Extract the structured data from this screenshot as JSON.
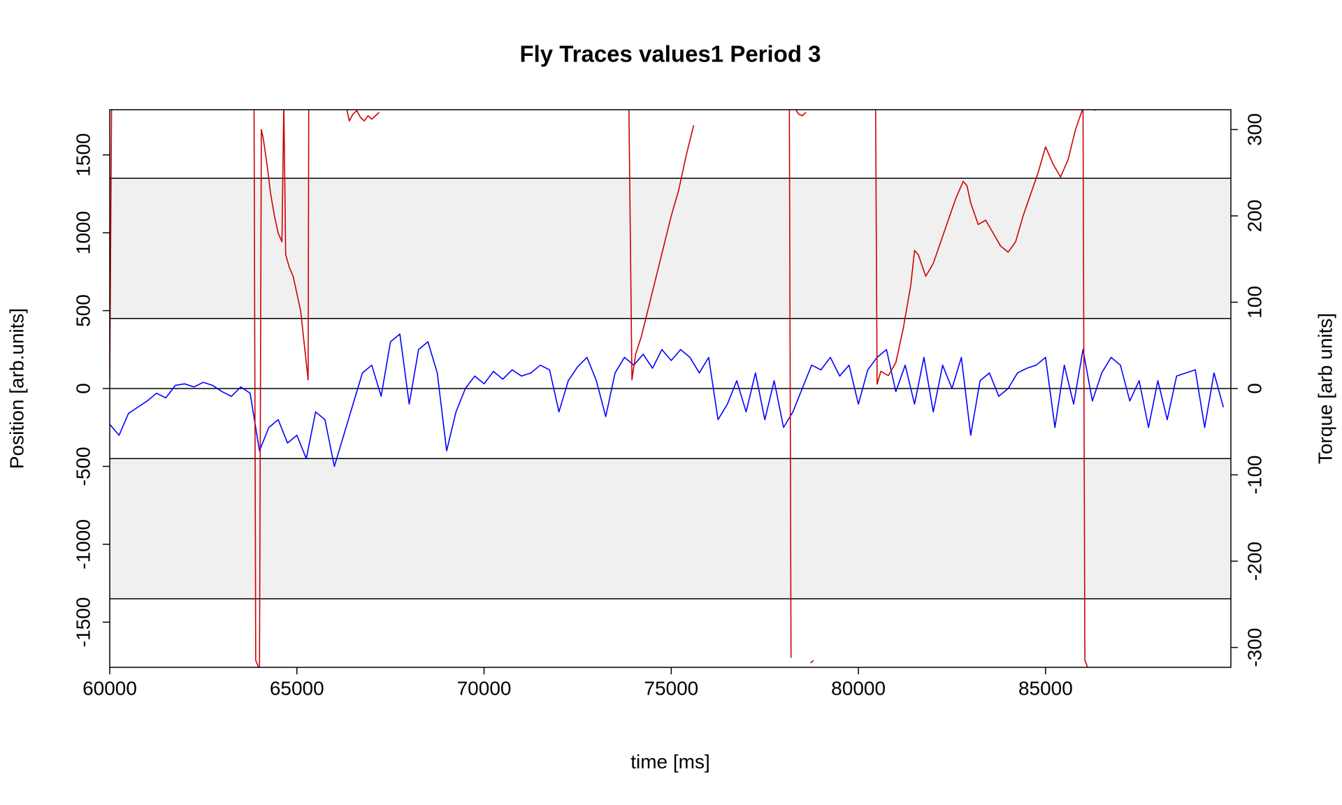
{
  "chart_data": {
    "type": "line",
    "title": "Fly Traces values1 Period 3",
    "x_label": "time [ms]",
    "y_label": "Position [arb.units]",
    "y2_label": "Torque [arb units]",
    "xlim": [
      60000,
      89950
    ],
    "xticks": [
      60000,
      65000,
      70000,
      75000,
      80000,
      85000
    ],
    "ylim": [
      -1790,
      1790
    ],
    "yticks": [
      -1500,
      -1000,
      -500,
      0,
      500,
      1000,
      1500
    ],
    "y2lim": [
      -323,
      323
    ],
    "y2ticks": [
      -300,
      -200,
      -100,
      0,
      100,
      200,
      300
    ],
    "bands": [
      [
        450,
        1350
      ],
      [
        -1350,
        -450
      ]
    ],
    "band_color": "#f0f0f0",
    "hlines": [
      0,
      450,
      -450,
      1350,
      -1350
    ],
    "series": [
      {
        "color": "#0000ff",
        "x": [
          60000,
          60250,
          60500,
          60750,
          61000,
          61250,
          61500,
          61750,
          62000,
          62250,
          62500,
          62750,
          63000,
          63250,
          63500,
          63750,
          64000,
          64250,
          64500,
          64750,
          65000,
          65250,
          65500,
          65750,
          66000,
          66250,
          66500,
          66750,
          67000,
          67250,
          67500,
          67750,
          68000,
          68250,
          68500,
          68750,
          69000,
          69250,
          69500,
          69750,
          70000,
          70250,
          70500,
          70750,
          71000,
          71250,
          71500,
          71750,
          72000,
          72250,
          72500,
          72750,
          73000,
          73250,
          73500,
          73750,
          74000,
          74250,
          74500,
          74750,
          75000,
          75250,
          75500,
          75750,
          76000,
          76250,
          76500,
          76750,
          77000,
          77250,
          77500,
          77750,
          78000,
          78250,
          78500,
          78750,
          79000,
          79250,
          79500,
          79750,
          80000,
          80250,
          80500,
          80750,
          81000,
          81250,
          81500,
          81750,
          82000,
          82250,
          82500,
          82750,
          83000,
          83250,
          83500,
          83750,
          84000,
          84250,
          84500,
          84750,
          85000,
          85250,
          85500,
          85750,
          86000,
          86250,
          86500,
          86750,
          87000,
          87250,
          87500,
          87750,
          88000,
          88250,
          88500,
          88750,
          89000,
          89250,
          89500,
          89750
        ],
        "values": [
          -230,
          -300,
          -160,
          -120,
          -80,
          -30,
          -60,
          20,
          30,
          10,
          40,
          20,
          -20,
          -50,
          10,
          -30,
          -400,
          -250,
          -200,
          -350,
          -300,
          -450,
          -150,
          -200,
          -500,
          -300,
          -100,
          100,
          150,
          -50,
          300,
          350,
          -100,
          250,
          300,
          100,
          -400,
          -150,
          0,
          80,
          30,
          110,
          60,
          120,
          80,
          100,
          150,
          120,
          -150,
          50,
          140,
          200,
          50,
          -180,
          100,
          200,
          150,
          220,
          130,
          250,
          180,
          250,
          200,
          100,
          200,
          -200,
          -100,
          50,
          -150,
          100,
          -200,
          50,
          -250,
          -150,
          0,
          150,
          120,
          200,
          80,
          150,
          -100,
          120,
          200,
          250,
          -20,
          150,
          -100,
          200,
          -150,
          150,
          0,
          200,
          -300,
          50,
          100,
          -50,
          0,
          100,
          130,
          150,
          200,
          -250,
          150,
          -100,
          250,
          -80,
          100,
          200,
          150,
          -80,
          50,
          -250,
          50,
          -200,
          80,
          100,
          120,
          -250,
          100,
          -120
        ]
      },
      {
        "color": "#cc0000",
        "axis": "y2",
        "x": [
          60000,
          60060,
          60100,
          63850,
          63900,
          63950,
          64000,
          64050,
          64100,
          64200,
          64300,
          64400,
          64500,
          64600,
          64650,
          64700,
          64800,
          64900,
          65000,
          65100,
          65200,
          65300,
          65320,
          65400,
          66200,
          66300,
          66400,
          66500,
          66600,
          66700,
          66800,
          66900,
          67000,
          67100,
          67200,
          67300,
          73850,
          73950,
          74050,
          74200,
          74400,
          74600,
          74800,
          75000,
          75200,
          75400,
          75600,
          75700,
          78150,
          78200,
          78250,
          78300,
          78400,
          78500,
          78600,
          78650,
          78720,
          78800,
          78850,
          80450,
          80500,
          80600,
          80800,
          81000,
          81200,
          81400,
          81500,
          81600,
          81800,
          82000,
          82200,
          82400,
          82600,
          82800,
          82900,
          83000,
          83200,
          83400,
          83600,
          83800,
          84000,
          84200,
          84400,
          84600,
          84800,
          85000,
          85200,
          85400,
          85600,
          85800,
          86000,
          86050,
          86100,
          86150,
          86200,
          86300,
          86350
        ],
        "values": [
          10,
          400,
          null,
          400,
          -315,
          -320,
          -330,
          300,
          290,
          260,
          225,
          200,
          180,
          170,
          330,
          155,
          140,
          130,
          110,
          90,
          50,
          10,
          400,
          null,
          340,
          330,
          310,
          318,
          322,
          314,
          310,
          316,
          312,
          316,
          320,
          null,
          400,
          10,
          40,
          60,
          95,
          130,
          165,
          200,
          230,
          270,
          305,
          null,
          400,
          -312,
          null,
          325,
          318,
          316,
          320,
          null,
          -318,
          -315,
          null,
          400,
          5,
          20,
          15,
          30,
          70,
          120,
          160,
          155,
          130,
          145,
          170,
          195,
          220,
          240,
          235,
          215,
          190,
          195,
          180,
          165,
          158,
          170,
          200,
          225,
          250,
          280,
          260,
          245,
          265,
          300,
          325,
          -315,
          -320,
          -330,
          null,
          322,
          324
        ]
      }
    ]
  }
}
